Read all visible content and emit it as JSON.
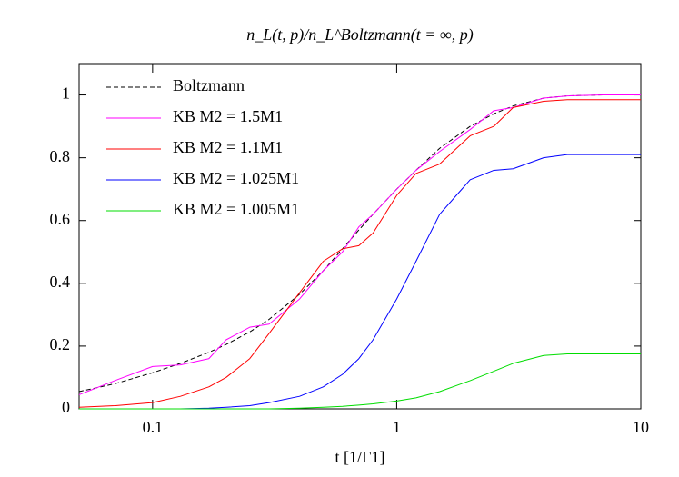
{
  "chart_data": {
    "type": "line",
    "title": "n_L(t, p)/n_L^Boltzmann(t = ∞, p)",
    "x_label": "t [1/Γ1]",
    "x": [
      0.05,
      0.07,
      0.1,
      0.13,
      0.17,
      0.2,
      0.25,
      0.3,
      0.4,
      0.5,
      0.6,
      0.7,
      0.8,
      1,
      1.2,
      1.5,
      2,
      2.5,
      3,
      4,
      5,
      7,
      10
    ],
    "series": [
      {
        "name": "Boltzmann",
        "color": "#000000",
        "dashed": true,
        "values": [
          0.055,
          0.08,
          0.115,
          0.145,
          0.18,
          0.205,
          0.245,
          0.285,
          0.365,
          0.44,
          0.51,
          0.57,
          0.62,
          0.7,
          0.76,
          0.83,
          0.9,
          0.94,
          0.965,
          0.99,
          0.997,
          1.0,
          1.0
        ]
      },
      {
        "name": "KB M2 = 1.5M1",
        "color": "#ff00ff",
        "dashed": false,
        "values": [
          0.045,
          0.09,
          0.135,
          0.14,
          0.16,
          0.22,
          0.26,
          0.27,
          0.35,
          0.44,
          0.5,
          0.58,
          0.62,
          0.7,
          0.76,
          0.82,
          0.89,
          0.95,
          0.96,
          0.99,
          0.997,
          1.0,
          1.0
        ]
      },
      {
        "name": "KB M2 = 1.1M1",
        "color": "#ff0000",
        "dashed": false,
        "values": [
          0.005,
          0.01,
          0.02,
          0.04,
          0.07,
          0.1,
          0.16,
          0.24,
          0.37,
          0.47,
          0.51,
          0.52,
          0.56,
          0.68,
          0.75,
          0.78,
          0.87,
          0.9,
          0.96,
          0.98,
          0.985,
          0.985,
          0.985
        ]
      },
      {
        "name": "KB M2 = 1.025M1",
        "color": "#0000ff",
        "dashed": false,
        "values": [
          0,
          0,
          0,
          0,
          0.002,
          0.005,
          0.01,
          0.02,
          0.04,
          0.07,
          0.11,
          0.16,
          0.22,
          0.35,
          0.47,
          0.62,
          0.73,
          0.76,
          0.765,
          0.8,
          0.81,
          0.81,
          0.81
        ]
      },
      {
        "name": "KB M2 = 1.005M1",
        "color": "#00dd00",
        "dashed": false,
        "values": [
          0,
          0,
          0,
          0,
          0,
          0,
          0,
          0,
          0.002,
          0.005,
          0.008,
          0.012,
          0.016,
          0.025,
          0.035,
          0.055,
          0.09,
          0.12,
          0.145,
          0.17,
          0.175,
          0.175,
          0.175
        ]
      }
    ],
    "xlim": [
      0.05,
      10
    ],
    "xticks": [
      0.1,
      1,
      10
    ],
    "log_x": true,
    "ylim": [
      0,
      1.1
    ],
    "yticks": [
      0,
      0.2,
      0.4,
      0.6,
      0.8,
      1
    ],
    "grid": false,
    "legend": "upper left"
  }
}
